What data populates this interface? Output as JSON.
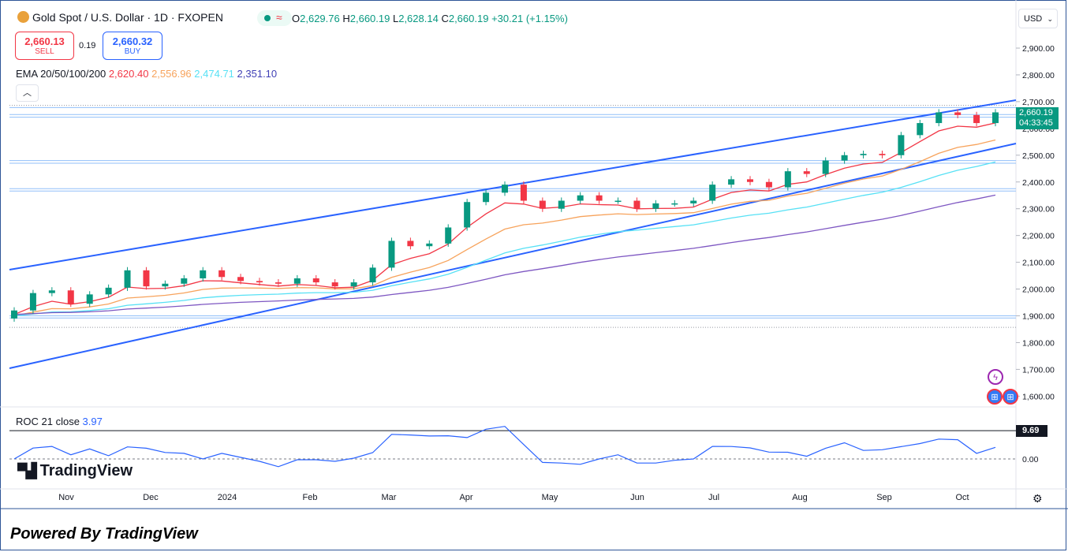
{
  "header": {
    "symbol": "Gold Spot / U.S. Dollar · 1D · FXOPEN",
    "ohlc": {
      "o_label": "O",
      "o": "2,629.76",
      "h_label": "H",
      "h": "2,660.19",
      "l_label": "L",
      "l": "2,628.14",
      "c_label": "C",
      "c": "2,660.19",
      "change": "+30.21 (+1.15%)"
    }
  },
  "trade": {
    "sell_price": "2,660.13",
    "sell_label": "SELL",
    "spread": "0.19",
    "buy_price": "2,660.32",
    "buy_label": "BUY"
  },
  "ema_legend": {
    "label": "EMA 20/50/100/200",
    "v20": "2,620.40",
    "v50": "2,556.96",
    "v100": "2,474.71",
    "v200": "2,351.10"
  },
  "roc_legend": {
    "label": "ROC 21 close",
    "value": "3.97",
    "tag": "9.69"
  },
  "currency_selector": "USD",
  "last_price_tag": {
    "price": "2,660.19",
    "countdown": "04:33:45"
  },
  "brand": {
    "tv_logo": "TradingView",
    "powered_by": "Powered By TradingView"
  },
  "colors": {
    "up": "#089981",
    "down": "#f23645",
    "ema20": "#f23645",
    "ema50": "#f7a35c",
    "ema100": "#57e1f5",
    "ema200": "#7e57c2",
    "channel": "#2962ff",
    "hline": "#90bff9",
    "roc": "#2962ff"
  },
  "icons": {
    "collapse": "chevron-up-icon",
    "currency": "chevron-down-icon",
    "event1": "lightning-icon",
    "event2": "us-flag-icon",
    "settings": "gear-icon"
  },
  "chart_data": {
    "type": "line",
    "title": "Gold Spot / U.S. Dollar · 1D · FXOPEN",
    "price_axis": {
      "ticks": [
        "2,900.00",
        "2,800.00",
        "2,700.00",
        "2,600.00",
        "2,500.00",
        "2,400.00",
        "2,300.00",
        "2,200.00",
        "2,100.00",
        "2,000.00",
        "1,900.00",
        "1,800.00",
        "1,700.00",
        "1,600.00"
      ],
      "range": [
        1570,
        2950
      ]
    },
    "time_axis": {
      "ticks": [
        "Nov",
        "Dec",
        "2024",
        "Feb",
        "Mar",
        "Apr",
        "May",
        "Jun",
        "Jul",
        "Aug",
        "Sep",
        "Oct"
      ]
    },
    "series": [
      {
        "name": "Close",
        "x": [
          "2023-10-16",
          "2023-10-23",
          "2023-10-30",
          "2023-11-06",
          "2023-11-13",
          "2023-11-20",
          "2023-11-27",
          "2023-12-04",
          "2023-12-11",
          "2023-12-18",
          "2023-12-27",
          "2024-01-02",
          "2024-01-08",
          "2024-01-15",
          "2024-01-22",
          "2024-01-29",
          "2024-02-05",
          "2024-02-12",
          "2024-02-19",
          "2024-02-26",
          "2024-03-04",
          "2024-03-11",
          "2024-03-18",
          "2024-03-25",
          "2024-04-01",
          "2024-04-08",
          "2024-04-15",
          "2024-04-22",
          "2024-04-29",
          "2024-05-06",
          "2024-05-13",
          "2024-05-20",
          "2024-05-27",
          "2024-06-03",
          "2024-06-10",
          "2024-06-17",
          "2024-06-24",
          "2024-07-01",
          "2024-07-08",
          "2024-07-15",
          "2024-07-22",
          "2024-07-29",
          "2024-08-05",
          "2024-08-12",
          "2024-08-19",
          "2024-08-26",
          "2024-09-02",
          "2024-09-09",
          "2024-09-16",
          "2024-09-23",
          "2024-09-30",
          "2024-10-07",
          "2024-10-11"
        ],
        "values": [
          1920,
          1985,
          1995,
          1945,
          1980,
          2005,
          2070,
          2010,
          2020,
          2040,
          2070,
          2045,
          2030,
          2025,
          2020,
          2040,
          2025,
          2010,
          2025,
          2080,
          2180,
          2160,
          2170,
          2230,
          2325,
          2360,
          2390,
          2330,
          2300,
          2330,
          2350,
          2330,
          2330,
          2300,
          2320,
          2320,
          2330,
          2390,
          2410,
          2400,
          2380,
          2440,
          2430,
          2480,
          2500,
          2505,
          2500,
          2575,
          2620,
          2660,
          2650,
          2620,
          2660
        ]
      },
      {
        "name": "EMA 20",
        "final": 2620.4
      },
      {
        "name": "EMA 50",
        "final": 2556.96
      },
      {
        "name": "EMA 100",
        "final": 2474.71
      },
      {
        "name": "EMA 200",
        "final": 2351.1
      }
    ],
    "roc": {
      "name": "ROC 21 close",
      "last": 3.97,
      "marker": 9.69,
      "zero_tick": "0.00"
    }
  }
}
